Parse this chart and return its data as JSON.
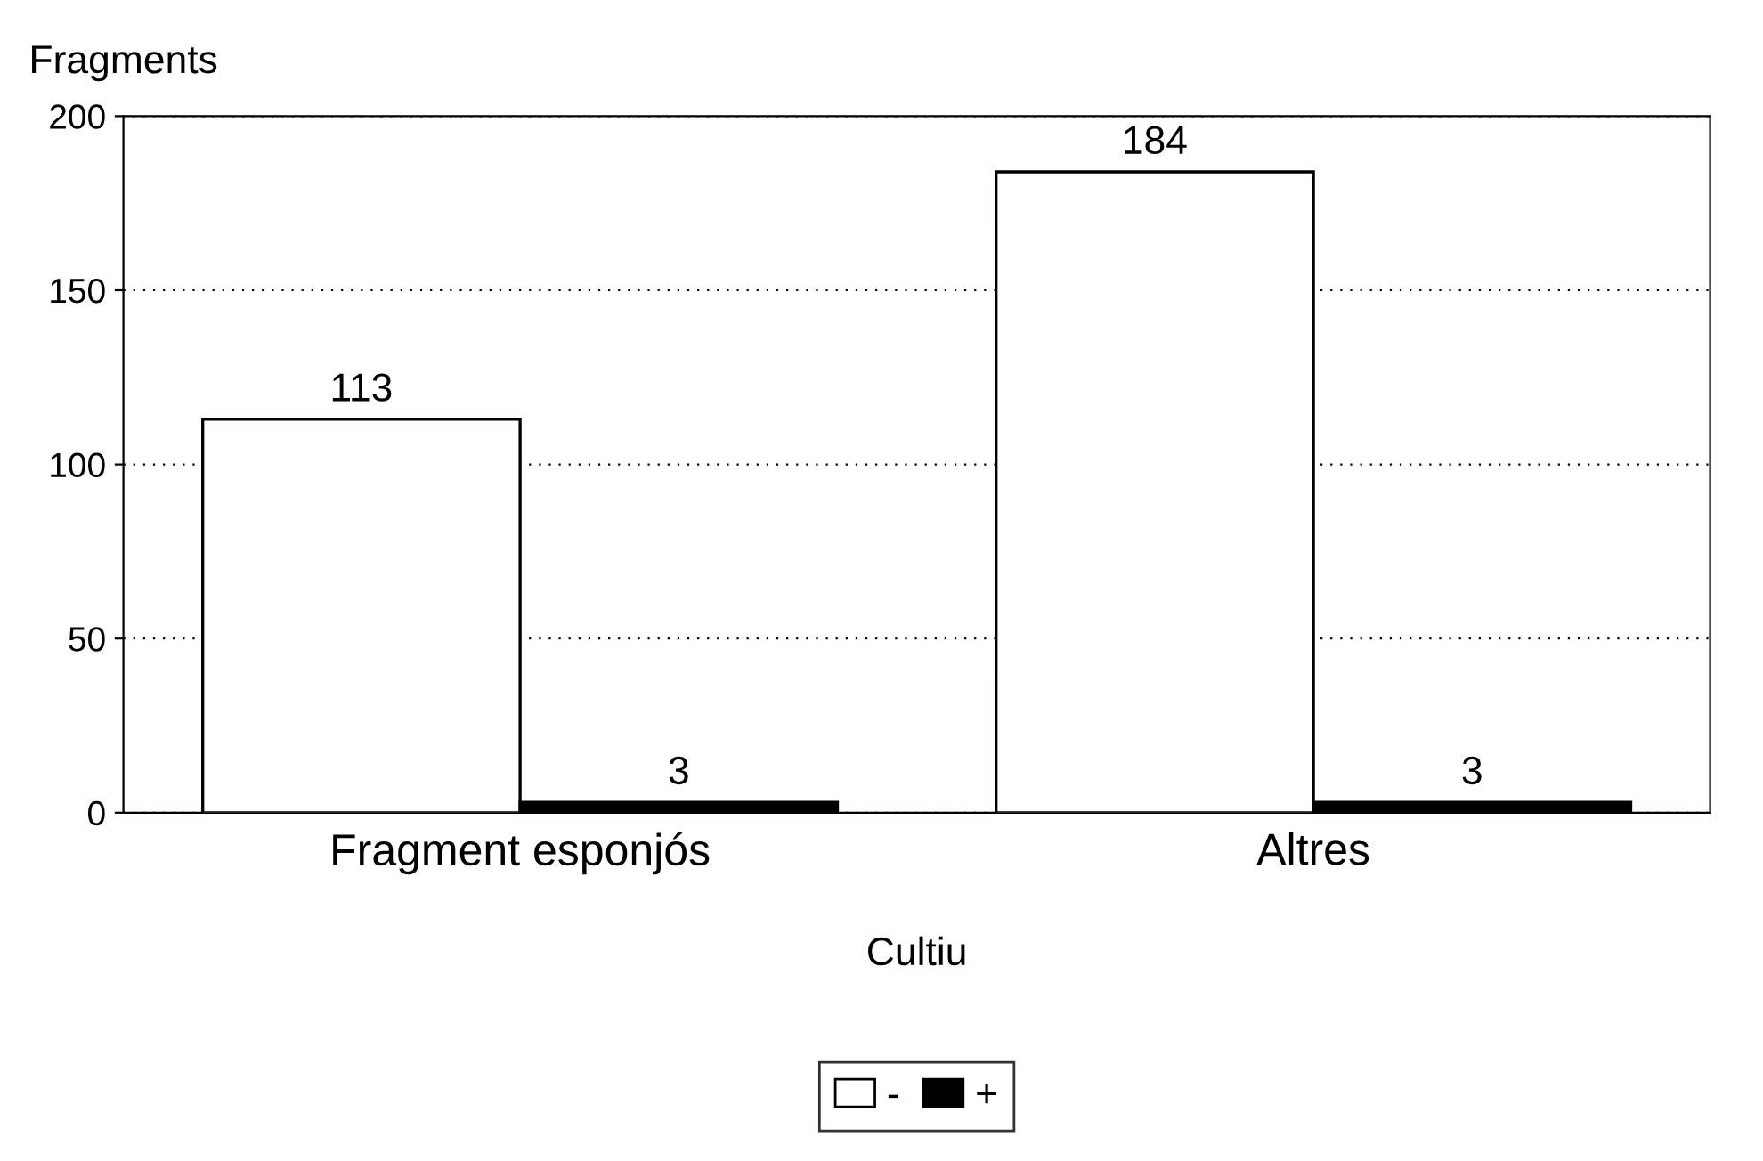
{
  "chart_data": {
    "type": "bar",
    "ylabel": "Fragments",
    "xlabel": "Cultiu",
    "categories": [
      "Fragment esponjós",
      "Altres"
    ],
    "series": [
      {
        "name": "-",
        "color": "#ffffff",
        "values": [
          113,
          184
        ]
      },
      {
        "name": "+",
        "color": "#000000",
        "values": [
          3,
          3
        ]
      }
    ],
    "ylim": [
      0,
      200
    ],
    "yticks": [
      0,
      50,
      100,
      150,
      200
    ],
    "grid": "y",
    "data_labels": true,
    "legend": "bottom"
  }
}
